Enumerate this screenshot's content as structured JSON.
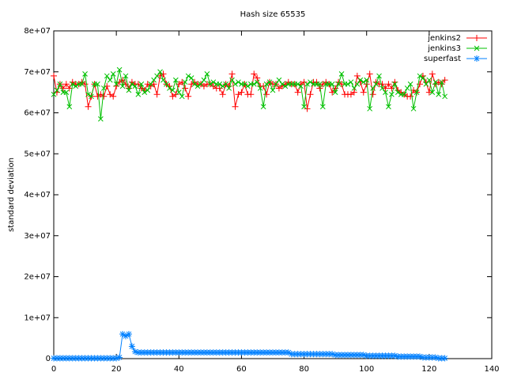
{
  "chart_data": {
    "type": "line",
    "title": "Hash size 65535",
    "ylabel": "standard deviation",
    "x": [
      0,
      1,
      2,
      3,
      4,
      5,
      6,
      7,
      8,
      9,
      10,
      11,
      12,
      13,
      14,
      15,
      16,
      17,
      18,
      19,
      20,
      21,
      22,
      23,
      24,
      25,
      26,
      27,
      28,
      29,
      30,
      31,
      32,
      33,
      34,
      35,
      36,
      37,
      38,
      39,
      40,
      41,
      42,
      43,
      44,
      45,
      46,
      47,
      48,
      49,
      50,
      51,
      52,
      53,
      54,
      55,
      56,
      57,
      58,
      59,
      60,
      61,
      62,
      63,
      64,
      65,
      66,
      67,
      68,
      69,
      70,
      71,
      72,
      73,
      74,
      75,
      76,
      77,
      78,
      79,
      80,
      81,
      82,
      83,
      84,
      85,
      86,
      87,
      88,
      89,
      90,
      91,
      92,
      93,
      94,
      95,
      96,
      97,
      98,
      99,
      100,
      101,
      102,
      103,
      104,
      105,
      106,
      107,
      108,
      109,
      110,
      111,
      112,
      113,
      114,
      115,
      116,
      117,
      118,
      119,
      120,
      121,
      122,
      123,
      124,
      125
    ],
    "series": [
      {
        "name": "jenkins2",
        "color": "#ff0000",
        "marker": "plus",
        "values": [
          69000000.0,
          65000000.0,
          67000000.0,
          66000000.0,
          67000000.0,
          66000000.0,
          67500000.0,
          67000000.0,
          67000000.0,
          67500000.0,
          67000000.0,
          61500000.0,
          64000000.0,
          67000000.0,
          64000000.0,
          64500000.0,
          64000000.0,
          66500000.0,
          64500000.0,
          64000000.0,
          66500000.0,
          67500000.0,
          68000000.0,
          67000000.0,
          66000000.0,
          67500000.0,
          67000000.0,
          67000000.0,
          66000000.0,
          65500000.0,
          67000000.0,
          66500000.0,
          67000000.0,
          64500000.0,
          69000000.0,
          69500000.0,
          67000000.0,
          66500000.0,
          64000000.0,
          64500000.0,
          67000000.0,
          67500000.0,
          66000000.0,
          64000000.0,
          67000000.0,
          67500000.0,
          67000000.0,
          67000000.0,
          66500000.0,
          67000000.0,
          67000000.0,
          66500000.0,
          66000000.0,
          66000000.0,
          64500000.0,
          67000000.0,
          66500000.0,
          69500000.0,
          61500000.0,
          64500000.0,
          65000000.0,
          67000000.0,
          64500000.0,
          64500000.0,
          69500000.0,
          68500000.0,
          66500000.0,
          66500000.0,
          64500000.0,
          67500000.0,
          67000000.0,
          67000000.0,
          66000000.0,
          66500000.0,
          67000000.0,
          67500000.0,
          67000000.0,
          67000000.0,
          65000000.0,
          67000000.0,
          67500000.0,
          61000000.0,
          64500000.0,
          67500000.0,
          67500000.0,
          66000000.0,
          67000000.0,
          67500000.0,
          67000000.0,
          65000000.0,
          66000000.0,
          67500000.0,
          67000000.0,
          64500000.0,
          64500000.0,
          64500000.0,
          65000000.0,
          69000000.0,
          67500000.0,
          65000000.0,
          67000000.0,
          69500000.0,
          64500000.0,
          67500000.0,
          67000000.0,
          67000000.0,
          66000000.0,
          67000000.0,
          66000000.0,
          67500000.0,
          65500000.0,
          65000000.0,
          64500000.0,
          64000000.0,
          64000000.0,
          65500000.0,
          65000000.0,
          67000000.0,
          69000000.0,
          67500000.0,
          65000000.0,
          69500000.0,
          67000000.0,
          67500000.0,
          67000000.0,
          68000000.0
        ]
      },
      {
        "name": "jenkins3",
        "color": "#00c000",
        "marker": "cross",
        "values": [
          64500000.0,
          65500000.0,
          67000000.0,
          65000000.0,
          65000000.0,
          61500000.0,
          67000000.0,
          66500000.0,
          67000000.0,
          67000000.0,
          69500000.0,
          64500000.0,
          64000000.0,
          67000000.0,
          67000000.0,
          58500000.0,
          66000000.0,
          69000000.0,
          68000000.0,
          69500000.0,
          67000000.0,
          70500000.0,
          66500000.0,
          69000000.0,
          65500000.0,
          67000000.0,
          66500000.0,
          64500000.0,
          67000000.0,
          65000000.0,
          65500000.0,
          67000000.0,
          68000000.0,
          69000000.0,
          70000000.0,
          68000000.0,
          67000000.0,
          66000000.0,
          65500000.0,
          68000000.0,
          65000000.0,
          64000000.0,
          67500000.0,
          69000000.0,
          68500000.0,
          67000000.0,
          66500000.0,
          67000000.0,
          68000000.0,
          69500000.0,
          67000000.0,
          67500000.0,
          67000000.0,
          67000000.0,
          66500000.0,
          67000000.0,
          66000000.0,
          68000000.0,
          67000000.0,
          67500000.0,
          67000000.0,
          67000000.0,
          66500000.0,
          67000000.0,
          67000000.0,
          67500000.0,
          66000000.0,
          61500000.0,
          67000000.0,
          67500000.0,
          65500000.0,
          67000000.0,
          68000000.0,
          67000000.0,
          66500000.0,
          67000000.0,
          67000000.0,
          67000000.0,
          67000000.0,
          66500000.0,
          61500000.0,
          67000000.0,
          67500000.0,
          67000000.0,
          67000000.0,
          67000000.0,
          61500000.0,
          67000000.0,
          67000000.0,
          67000000.0,
          65000000.0,
          67000000.0,
          69500000.0,
          67000000.0,
          67000000.0,
          67500000.0,
          66000000.0,
          67000000.0,
          68000000.0,
          67500000.0,
          68000000.0,
          61000000.0,
          66000000.0,
          67000000.0,
          69000000.0,
          66000000.0,
          65000000.0,
          61500000.0,
          64500000.0,
          67000000.0,
          65000000.0,
          64500000.0,
          64500000.0,
          66000000.0,
          67000000.0,
          61000000.0,
          65000000.0,
          69000000.0,
          68500000.0,
          67000000.0,
          68000000.0,
          65000000.0,
          67500000.0,
          64500000.0,
          67500000.0,
          64000000.0
        ]
      },
      {
        "name": "superfast",
        "color": "#0080ff",
        "marker": "star",
        "values": [
          100000.0,
          100000.0,
          100000.0,
          100000.0,
          100000.0,
          100000.0,
          100000.0,
          100000.0,
          100000.0,
          100000.0,
          100000.0,
          100000.0,
          100000.0,
          100000.0,
          100000.0,
          100000.0,
          100000.0,
          100000.0,
          100000.0,
          100000.0,
          100000.0,
          300000.0,
          6000000.0,
          5500000.0,
          6000000.0,
          3000000.0,
          1700000.0,
          1500000.0,
          1500000.0,
          1500000.0,
          1500000.0,
          1500000.0,
          1500000.0,
          1500000.0,
          1500000.0,
          1500000.0,
          1500000.0,
          1500000.0,
          1500000.0,
          1500000.0,
          1500000.0,
          1500000.0,
          1500000.0,
          1500000.0,
          1500000.0,
          1500000.0,
          1500000.0,
          1500000.0,
          1500000.0,
          1500000.0,
          1500000.0,
          1500000.0,
          1500000.0,
          1500000.0,
          1500000.0,
          1500000.0,
          1500000.0,
          1500000.0,
          1500000.0,
          1500000.0,
          1500000.0,
          1500000.0,
          1500000.0,
          1500000.0,
          1500000.0,
          1500000.0,
          1500000.0,
          1500000.0,
          1500000.0,
          1500000.0,
          1500000.0,
          1500000.0,
          1500000.0,
          1500000.0,
          1500000.0,
          1500000.0,
          1100000.0,
          1100000.0,
          1100000.0,
          1100000.0,
          1100000.0,
          1100000.0,
          1100000.0,
          1100000.0,
          1100000.0,
          1100000.0,
          1100000.0,
          1100000.0,
          1100000.0,
          1100000.0,
          900000.0,
          900000.0,
          900000.0,
          900000.0,
          900000.0,
          900000.0,
          900000.0,
          900000.0,
          900000.0,
          900000.0,
          700000.0,
          700000.0,
          700000.0,
          700000.0,
          700000.0,
          700000.0,
          700000.0,
          700000.0,
          700000.0,
          700000.0,
          500000.0,
          500000.0,
          500000.0,
          500000.0,
          500000.0,
          500000.0,
          500000.0,
          500000.0,
          300000.0,
          300000.0,
          300000.0,
          300000.0,
          300000.0,
          100000.0,
          100000.0,
          100000.0
        ]
      }
    ],
    "xlim": [
      0,
      140
    ],
    "xticks": [
      0,
      20,
      40,
      60,
      80,
      100,
      120,
      140
    ],
    "ylim": [
      0,
      80000000
    ],
    "yticks": [
      0,
      {
        "value": 10000000,
        "label": "1e+07"
      },
      {
        "value": 20000000,
        "label": "2e+07"
      },
      {
        "value": 30000000,
        "label": "3e+07"
      },
      {
        "value": 40000000,
        "label": "4e+07"
      },
      {
        "value": 50000000,
        "label": "5e+07"
      },
      {
        "value": 60000000,
        "label": "6e+07"
      },
      {
        "value": 70000000,
        "label": "7e+07"
      },
      {
        "value": 80000000,
        "label": "8e+07"
      }
    ],
    "legend": "upper right",
    "grid": false
  }
}
